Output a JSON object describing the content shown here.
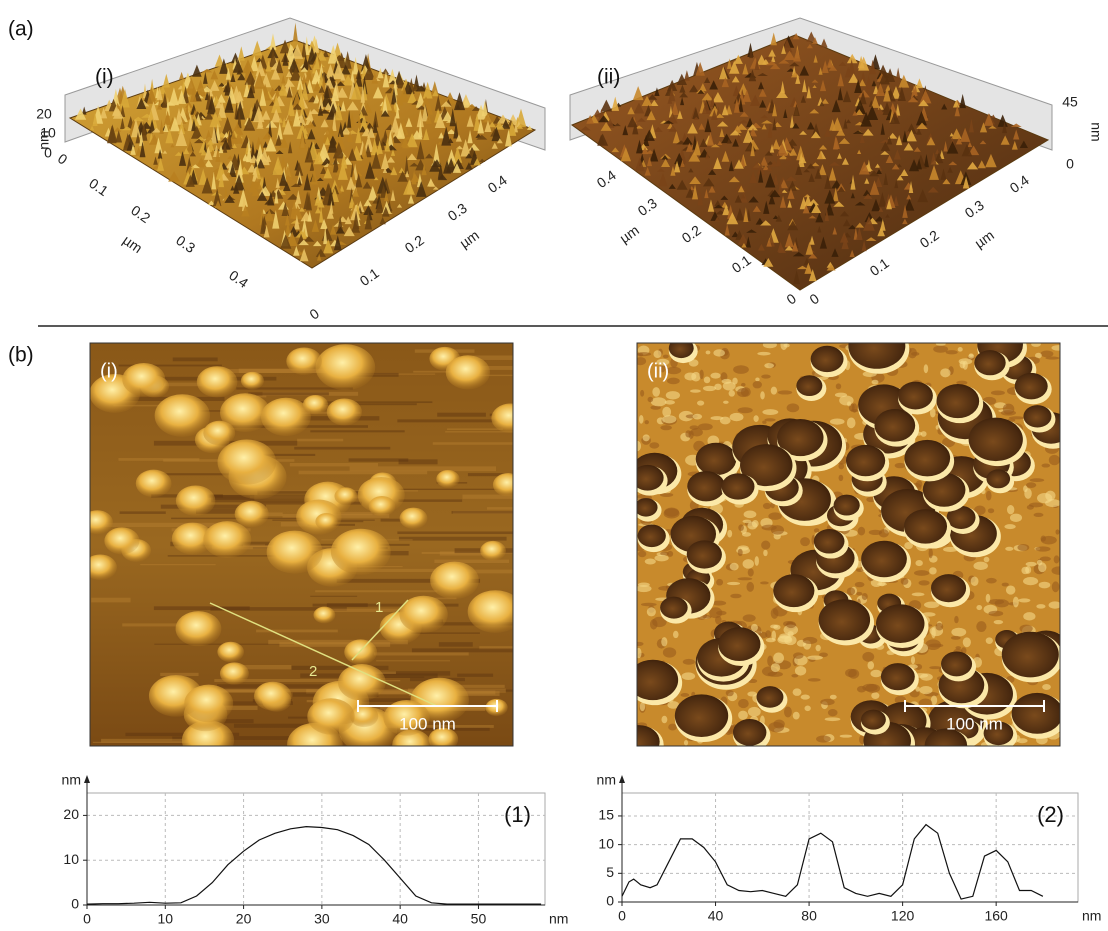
{
  "figure_labels": {
    "a": "(a)",
    "b": "(b)"
  },
  "surface_plots": [
    {
      "label": "(i)",
      "x_ticks": [
        "0",
        "0.1",
        "0.2",
        "0.3",
        "0.4"
      ],
      "x_label": "µm",
      "y_ticks": [
        "0",
        "0.1",
        "0.2",
        "0.3",
        "0.4"
      ],
      "y_label": "µm",
      "z_ticks": [
        "0",
        "10",
        "20"
      ],
      "z_label": "nm"
    },
    {
      "label": "(ii)",
      "x_ticks": [
        "0",
        "0.1",
        "0.2",
        "0.3",
        "0.4"
      ],
      "x_label": "µm",
      "y_ticks": [
        "0",
        "0.1",
        "0.2",
        "0.3",
        "0.4"
      ],
      "y_label": "µm",
      "z_ticks": [
        "0",
        "45"
      ],
      "z_label": "nm"
    }
  ],
  "images": [
    {
      "label": "(i)",
      "scale_bar": "100 nm",
      "line_labels": [
        "1",
        "2"
      ]
    },
    {
      "label": "(ii)",
      "scale_bar": "100 nm"
    }
  ],
  "chart_data": [
    {
      "type": "line",
      "annotation": "(1)",
      "x_label": "nm",
      "y_label": "nm",
      "color": "#111111",
      "grid": true,
      "x": [
        0,
        2,
        4,
        6,
        8,
        10,
        12,
        14,
        16,
        18,
        20,
        22,
        24,
        26,
        28,
        30,
        32,
        34,
        36,
        38,
        40,
        42,
        44,
        46,
        48,
        50,
        52,
        54,
        56,
        58
      ],
      "values": [
        0.2,
        0.3,
        0.3,
        0.4,
        0.6,
        0.4,
        0.5,
        2,
        5,
        9,
        12,
        14.5,
        16,
        17,
        17.5,
        17.3,
        16.8,
        15.5,
        13.5,
        10,
        6,
        2,
        0.5,
        0.2,
        0.2,
        0.2,
        0.2,
        0.2,
        0.2,
        0.2
      ],
      "xlim": [
        0,
        58.5
      ],
      "ylim": [
        0,
        25
      ],
      "xticks": [
        0,
        10,
        20,
        30,
        40,
        50
      ],
      "yticks": [
        0,
        10,
        20
      ]
    },
    {
      "type": "line",
      "annotation": "(2)",
      "x_label": "nm",
      "y_label": "nm",
      "color": "#111111",
      "grid": true,
      "x": [
        0,
        3,
        5,
        8,
        12,
        15,
        20,
        25,
        30,
        35,
        40,
        45,
        50,
        55,
        60,
        65,
        70,
        75,
        80,
        85,
        90,
        95,
        100,
        105,
        110,
        115,
        120,
        125,
        130,
        135,
        140,
        145,
        150,
        155,
        160,
        165,
        170,
        175,
        180
      ],
      "values": [
        1,
        3.5,
        4,
        3,
        2.5,
        3,
        7,
        11,
        11,
        9.5,
        7,
        3,
        2,
        1.8,
        2,
        1.5,
        1,
        3,
        11,
        12,
        10.5,
        2.5,
        1.5,
        1,
        1.5,
        1,
        3,
        11,
        13.5,
        12,
        5,
        0.5,
        1,
        8,
        9,
        7,
        2,
        2,
        1
      ],
      "xlim": [
        0,
        195
      ],
      "ylim": [
        0,
        19
      ],
      "xticks": [
        0,
        40,
        80,
        120,
        160
      ],
      "yticks": [
        0,
        5,
        10,
        15
      ]
    }
  ]
}
